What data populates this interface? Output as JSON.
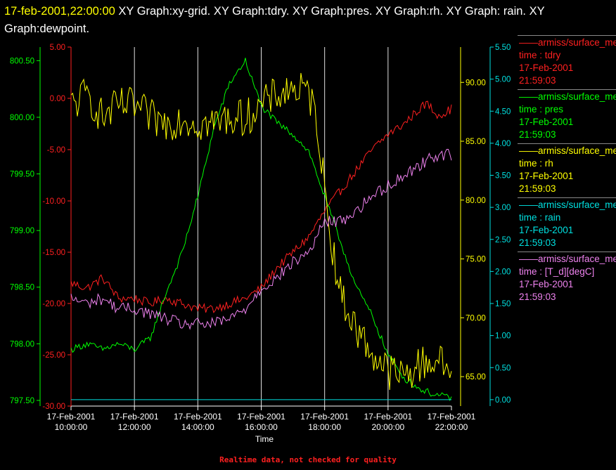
{
  "title": {
    "timestamp": "17-feb-2001,22:00:00",
    "text": " XY Graph:xy-grid.  XY Graph:tdry.  XY Graph:pres.  XY Graph:rh.  XY Graph: rain.  XY Graph:dewpoint."
  },
  "footer": "Realtime data, not checked for quality",
  "legend": [
    {
      "source": "armiss/surface_met",
      "var": "time : tdry",
      "date": "17-Feb-2001",
      "time": "21:59:03",
      "color": "#ff2020"
    },
    {
      "source": "armiss/surface_met",
      "var": "time : pres",
      "date": "17-Feb-2001",
      "time": "21:59:03",
      "color": "#00ff00"
    },
    {
      "source": "armiss/surface_met",
      "var": "time : rh",
      "date": "17-Feb-2001",
      "time": "21:59:03",
      "color": "#ffff00"
    },
    {
      "source": "armiss/surface_met",
      "var": "time : rain",
      "date": "17-Feb-2001",
      "time": "21:59:03",
      "color": "#00e0e0"
    },
    {
      "source": "armiss/surface_met",
      "var": "time : [T_d][degC]",
      "date": "17-Feb-2001",
      "time": "21:59:03",
      "color": "#ee82ee"
    }
  ],
  "chart_data": {
    "type": "line",
    "xlabel": "Time",
    "xlim": [
      "10:00",
      "22:00"
    ],
    "x_ticks": [
      {
        "date": "17-Feb-2001",
        "time": "10:00:00"
      },
      {
        "date": "17-Feb-2001",
        "time": "12:00:00"
      },
      {
        "date": "17-Feb-2001",
        "time": "14:00:00"
      },
      {
        "date": "17-Feb-2001",
        "time": "16:00:00"
      },
      {
        "date": "17-Feb-2001",
        "time": "18:00:00"
      },
      {
        "date": "17-Feb-2001",
        "time": "20:00:00"
      },
      {
        "date": "17-Feb-2001",
        "time": "22:00:00"
      }
    ],
    "grid": "vertical",
    "axes": [
      {
        "id": "pres",
        "side": "left",
        "color": "#00ff00",
        "ylim": [
          797.45,
          800.62
        ],
        "ticks": [
          "800.50",
          "800.00",
          "799.50",
          "799.00",
          "798.50",
          "798.00",
          "797.50"
        ]
      },
      {
        "id": "temp",
        "side": "left",
        "color": "#ff2020",
        "ylim": [
          -30,
          5
        ],
        "ticks": [
          "5.00",
          "0.00",
          "-5.00",
          "-10.00",
          "-15.00",
          "-20.00",
          "-25.00",
          "-30.00"
        ]
      },
      {
        "id": "rh",
        "side": "right",
        "color": "#ffff00",
        "ylim": [
          62.5,
          93
        ],
        "ticks": [
          "90.00",
          "85.00",
          "80.00",
          "75.00",
          "70.00",
          "65.00"
        ]
      },
      {
        "id": "rain",
        "side": "right",
        "color": "#00e0e0",
        "ylim": [
          -0.1,
          5.5
        ],
        "ticks": [
          "5.50",
          "5.00",
          "4.50",
          "4.00",
          "3.50",
          "3.00",
          "2.50",
          "2.00",
          "1.50",
          "1.00",
          "0.50",
          "0.00"
        ]
      }
    ],
    "series": [
      {
        "id": "tdry",
        "axis": "temp",
        "color": "#ff2020",
        "x": [
          "10:00",
          "10:30",
          "11:00",
          "11:30",
          "12:00",
          "12:30",
          "13:00",
          "13:30",
          "14:00",
          "14:30",
          "15:00",
          "15:30",
          "16:00",
          "16:30",
          "17:00",
          "17:30",
          "18:00",
          "18:30",
          "19:00",
          "19:30",
          "20:00",
          "20:30",
          "21:00",
          "21:15",
          "21:30",
          "21:45",
          "22:00"
        ],
        "y": [
          -18,
          -18.5,
          -17.5,
          -19.5,
          -19.5,
          -20,
          -19.5,
          -20,
          -20.5,
          -20.5,
          -20,
          -19.5,
          -18.5,
          -16.5,
          -15,
          -13.5,
          -11,
          -9,
          -7,
          -5,
          -3.5,
          -2.5,
          -1,
          -0.5,
          -1.5,
          -1.5,
          -1
        ]
      },
      {
        "id": "pres",
        "axis": "pres",
        "color": "#00ff00",
        "x": [
          "10:00",
          "10:30",
          "11:00",
          "11:30",
          "12:00",
          "12:30",
          "13:00",
          "13:30",
          "14:00",
          "14:30",
          "15:00",
          "15:15",
          "15:30",
          "16:00",
          "16:30",
          "17:00",
          "17:30",
          "18:00",
          "18:30",
          "19:00",
          "19:30",
          "20:00",
          "20:30",
          "21:00",
          "21:30",
          "22:00"
        ],
        "y": [
          797.95,
          798.0,
          797.95,
          798.0,
          797.95,
          798.05,
          798.45,
          798.8,
          799.3,
          799.9,
          800.3,
          800.4,
          800.5,
          800.1,
          799.95,
          799.85,
          799.7,
          799.3,
          798.9,
          798.5,
          798.25,
          797.9,
          797.7,
          797.6,
          797.55,
          797.52
        ]
      },
      {
        "id": "rh",
        "axis": "rh",
        "color": "#ffff00",
        "x": [
          "10:00",
          "10:30",
          "11:00",
          "11:30",
          "12:00",
          "12:30",
          "13:00",
          "13:30",
          "14:00",
          "14:30",
          "15:00",
          "15:30",
          "16:00",
          "16:30",
          "17:00",
          "17:30",
          "17:45",
          "18:00",
          "18:15",
          "18:30",
          "19:00",
          "19:30",
          "20:00",
          "20:30",
          "21:00",
          "21:30",
          "22:00"
        ],
        "y": [
          88,
          89,
          87,
          88,
          88,
          87,
          86.5,
          87,
          86.5,
          86.5,
          87,
          87,
          88,
          89,
          89.5,
          89,
          87,
          81,
          76,
          72,
          69,
          67,
          65.5,
          65,
          66,
          66.5,
          65.5
        ]
      },
      {
        "id": "rain",
        "axis": "rain",
        "color": "#00e0e0",
        "x": [
          "10:00",
          "22:00"
        ],
        "y": [
          0.0,
          0.0
        ]
      },
      {
        "id": "dewpoint",
        "axis": "temp",
        "color": "#ee82ee",
        "x": [
          "10:00",
          "10:30",
          "11:00",
          "11:30",
          "12:00",
          "12:30",
          "13:00",
          "13:30",
          "14:00",
          "14:30",
          "15:00",
          "15:30",
          "16:00",
          "16:30",
          "17:00",
          "17:30",
          "18:00",
          "18:30",
          "19:00",
          "19:30",
          "20:00",
          "20:30",
          "21:00",
          "21:30",
          "22:00"
        ],
        "y": [
          -19.5,
          -20,
          -19.5,
          -20.5,
          -20.5,
          -21,
          -21.5,
          -22,
          -22,
          -22,
          -21.5,
          -20.5,
          -18.5,
          -17.5,
          -16,
          -15,
          -12,
          -12,
          -11,
          -9.5,
          -8.5,
          -7.5,
          -6.5,
          -5.5,
          -5.5
        ]
      }
    ]
  }
}
